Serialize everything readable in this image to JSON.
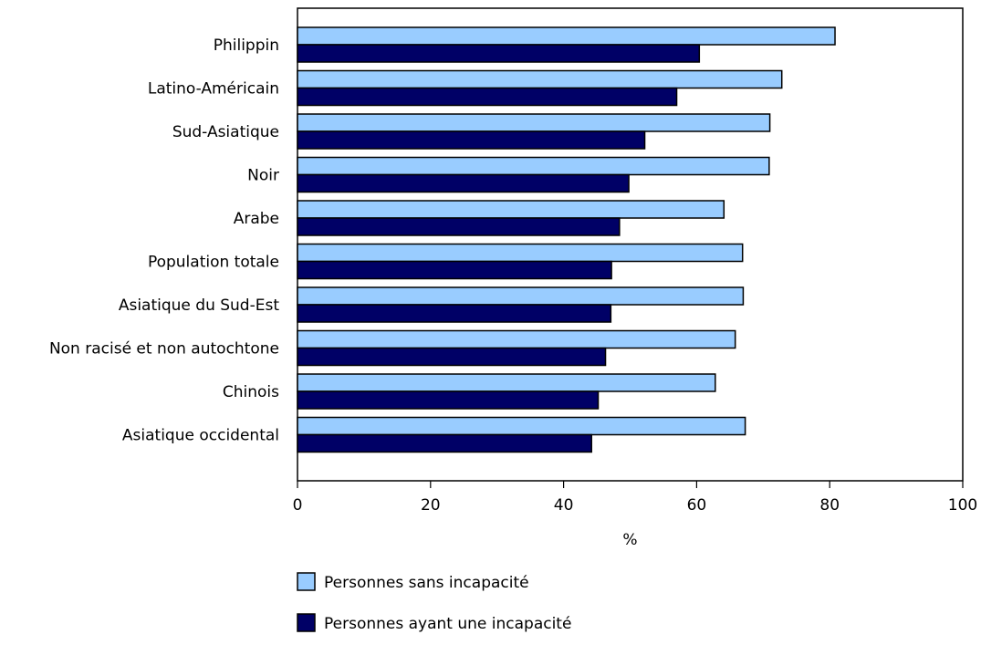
{
  "chart_data": {
    "type": "bar",
    "orientation": "horizontal",
    "title": "",
    "xlabel": "%",
    "ylabel": "",
    "xlim": [
      0,
      100
    ],
    "x_ticks": [
      "0",
      "20",
      "40",
      "60",
      "80",
      "100"
    ],
    "grid": false,
    "legend_position": "bottom",
    "categories": [
      "Philippin",
      "Latino-Américain",
      "Sud-Asiatique",
      "Noir",
      "Arabe",
      "Population totale",
      "Asiatique du Sud-Est",
      "Non racisé et non autochtone",
      "Chinois",
      "Asiatique occidental"
    ],
    "series": [
      {
        "name": "Personnes sans incapacité",
        "color": "#99ccff",
        "values": [
          80.8,
          72.8,
          71.0,
          70.9,
          64.1,
          66.9,
          67.0,
          65.8,
          62.8,
          67.3
        ]
      },
      {
        "name": "Personnes ayant une incapacité",
        "color": "#000066",
        "values": [
          60.4,
          57.0,
          52.2,
          49.8,
          48.4,
          47.2,
          47.1,
          46.3,
          45.2,
          44.2
        ]
      }
    ]
  }
}
